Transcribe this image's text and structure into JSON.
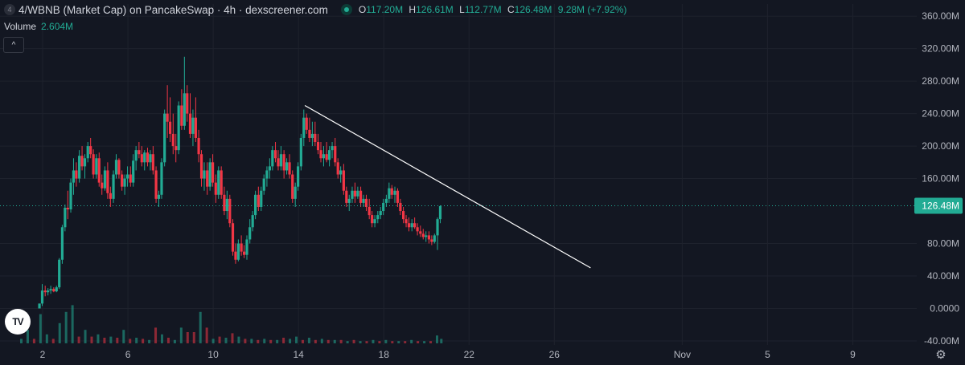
{
  "header": {
    "symbol_badge": "4",
    "title": "4/WBNB (Market Cap) on PancakeSwap · 4h · dexscreener.com",
    "status_color": "#22ab94",
    "ohlc": [
      {
        "key": "O",
        "value": "117.20M"
      },
      {
        "key": "H",
        "value": "126.61M"
      },
      {
        "key": "L",
        "value": "112.77M"
      },
      {
        "key": "C",
        "value": "126.48M"
      }
    ],
    "change": "9.28M (+7.92%)"
  },
  "volume": {
    "label": "Volume",
    "value": "2.604M"
  },
  "controls": {
    "collapse_icon": "chevron-up-icon",
    "collapse_glyph": "^",
    "settings_icon": "gear-icon",
    "settings_glyph": "⚙",
    "logo": "tradingview-logo",
    "logo_text": "TV"
  },
  "colors": {
    "background": "#131722",
    "up": "#22ab94",
    "down": "#f23645",
    "price_tag": "#22ab94",
    "trendline": "#ffffff",
    "grid": "#1e222d",
    "axis_text": "#b2b5be"
  },
  "chart_data": {
    "type": "candlestick",
    "y_axis_labels": [
      "360.00M",
      "320.00M",
      "280.00M",
      "240.00M",
      "200.00M",
      "160.00M",
      "126.48M",
      "80.00M",
      "40.00M",
      "0.0000",
      "-40.00M"
    ],
    "y_ticks": [
      360,
      320,
      280,
      240,
      200,
      160,
      80,
      40,
      0,
      -40
    ],
    "ylim": [
      -45,
      375
    ],
    "y_unit": "M",
    "x_axis_labels": [
      "2",
      "6",
      "10",
      "14",
      "18",
      "22",
      "26",
      "Nov",
      "5",
      "9"
    ],
    "x_ticks": [
      2,
      6,
      10,
      14,
      18,
      22,
      26,
      32,
      36,
      40
    ],
    "xlim": [
      0,
      43
    ],
    "last_price": 126.48,
    "last_price_label": "126.48M",
    "trendline": {
      "x1": 14.3,
      "y1": 250,
      "x2": 27.7,
      "y2": 50
    },
    "candles": [
      [
        1.85,
        0,
        6,
        0,
        6
      ],
      [
        1.98,
        6,
        30,
        3,
        22
      ],
      [
        2.12,
        22,
        28,
        15,
        20
      ],
      [
        2.25,
        20,
        25,
        16,
        22
      ],
      [
        2.38,
        22,
        28,
        18,
        24
      ],
      [
        2.52,
        24,
        26,
        20,
        21
      ],
      [
        2.65,
        21,
        28,
        20,
        26
      ],
      [
        2.78,
        26,
        62,
        24,
        60
      ],
      [
        2.92,
        60,
        103,
        55,
        100
      ],
      [
        3.05,
        100,
        128,
        95,
        124
      ],
      [
        3.18,
        124,
        145,
        110,
        122
      ],
      [
        3.32,
        122,
        160,
        118,
        155
      ],
      [
        3.45,
        155,
        185,
        140,
        170
      ],
      [
        3.58,
        170,
        180,
        150,
        160
      ],
      [
        3.72,
        160,
        195,
        155,
        188
      ],
      [
        3.85,
        188,
        200,
        170,
        175
      ],
      [
        3.98,
        175,
        190,
        160,
        185
      ],
      [
        4.12,
        185,
        205,
        180,
        200
      ],
      [
        4.25,
        200,
        210,
        185,
        190
      ],
      [
        4.38,
        190,
        196,
        160,
        165
      ],
      [
        4.52,
        165,
        190,
        160,
        185
      ],
      [
        4.65,
        185,
        192,
        150,
        155
      ],
      [
        4.78,
        155,
        165,
        140,
        148
      ],
      [
        4.92,
        148,
        175,
        145,
        170
      ],
      [
        5.05,
        170,
        180,
        135,
        142
      ],
      [
        5.18,
        142,
        150,
        125,
        135
      ],
      [
        5.32,
        135,
        170,
        130,
        165
      ],
      [
        5.45,
        165,
        190,
        160,
        183
      ],
      [
        5.58,
        183,
        185,
        160,
        165
      ],
      [
        5.72,
        165,
        170,
        145,
        150
      ],
      [
        5.85,
        150,
        165,
        140,
        160
      ],
      [
        5.98,
        160,
        175,
        150,
        165
      ],
      [
        6.12,
        165,
        175,
        150,
        155
      ],
      [
        6.25,
        155,
        190,
        150,
        182
      ],
      [
        6.38,
        182,
        200,
        170,
        195
      ],
      [
        6.52,
        195,
        205,
        185,
        190
      ],
      [
        6.65,
        190,
        200,
        175,
        180
      ],
      [
        6.78,
        180,
        195,
        170,
        192
      ],
      [
        6.92,
        192,
        198,
        175,
        180
      ],
      [
        7.05,
        180,
        195,
        170,
        190
      ],
      [
        7.18,
        190,
        200,
        165,
        170
      ],
      [
        7.32,
        170,
        175,
        130,
        135
      ],
      [
        7.45,
        135,
        145,
        125,
        140
      ],
      [
        7.58,
        140,
        185,
        135,
        180
      ],
      [
        7.72,
        180,
        245,
        175,
        240
      ],
      [
        7.85,
        240,
        275,
        210,
        230
      ],
      [
        7.98,
        230,
        260,
        205,
        215
      ],
      [
        8.12,
        215,
        240,
        190,
        200
      ],
      [
        8.25,
        200,
        215,
        180,
        195
      ],
      [
        8.38,
        195,
        255,
        190,
        250
      ],
      [
        8.52,
        250,
        270,
        220,
        225
      ],
      [
        8.65,
        225,
        310,
        220,
        265
      ],
      [
        8.78,
        265,
        275,
        230,
        240
      ],
      [
        8.92,
        240,
        265,
        210,
        215
      ],
      [
        9.05,
        215,
        245,
        200,
        235
      ],
      [
        9.18,
        235,
        260,
        205,
        210
      ],
      [
        9.32,
        210,
        220,
        180,
        190
      ],
      [
        9.45,
        190,
        195,
        150,
        160
      ],
      [
        9.58,
        160,
        180,
        145,
        170
      ],
      [
        9.72,
        170,
        180,
        140,
        150
      ],
      [
        9.85,
        150,
        185,
        145,
        180
      ],
      [
        9.98,
        180,
        190,
        150,
        155
      ],
      [
        10.12,
        155,
        165,
        130,
        140
      ],
      [
        10.25,
        140,
        175,
        135,
        170
      ],
      [
        10.38,
        170,
        175,
        135,
        140
      ],
      [
        10.52,
        140,
        150,
        115,
        120
      ],
      [
        10.65,
        120,
        145,
        110,
        135
      ],
      [
        10.78,
        135,
        140,
        100,
        105
      ],
      [
        10.92,
        105,
        110,
        65,
        70
      ],
      [
        11.05,
        70,
        80,
        55,
        60
      ],
      [
        11.18,
        60,
        85,
        58,
        80
      ],
      [
        11.32,
        80,
        90,
        65,
        70
      ],
      [
        11.45,
        70,
        78,
        62,
        66
      ],
      [
        11.58,
        66,
        90,
        60,
        85
      ],
      [
        11.72,
        85,
        110,
        80,
        100
      ],
      [
        11.85,
        100,
        120,
        95,
        115
      ],
      [
        11.98,
        115,
        145,
        110,
        140
      ],
      [
        12.12,
        140,
        150,
        120,
        125
      ],
      [
        12.25,
        125,
        150,
        120,
        145
      ],
      [
        12.38,
        145,
        165,
        140,
        160
      ],
      [
        12.52,
        160,
        175,
        150,
        170
      ],
      [
        12.65,
        170,
        185,
        160,
        175
      ],
      [
        12.78,
        175,
        200,
        170,
        195
      ],
      [
        12.92,
        195,
        205,
        180,
        185
      ],
      [
        13.05,
        185,
        195,
        170,
        175
      ],
      [
        13.18,
        175,
        200,
        170,
        190
      ],
      [
        13.32,
        190,
        195,
        160,
        170
      ],
      [
        13.45,
        170,
        185,
        165,
        180
      ],
      [
        13.58,
        180,
        190,
        160,
        165
      ],
      [
        13.72,
        165,
        170,
        130,
        135
      ],
      [
        13.85,
        135,
        155,
        125,
        150
      ],
      [
        13.98,
        150,
        180,
        145,
        175
      ],
      [
        14.12,
        175,
        215,
        170,
        210
      ],
      [
        14.25,
        210,
        245,
        200,
        235
      ],
      [
        14.38,
        235,
        240,
        215,
        220
      ],
      [
        14.52,
        220,
        235,
        205,
        210
      ],
      [
        14.65,
        210,
        230,
        200,
        215
      ],
      [
        14.78,
        215,
        230,
        200,
        205
      ],
      [
        14.92,
        205,
        215,
        190,
        195
      ],
      [
        15.05,
        195,
        205,
        180,
        185
      ],
      [
        15.18,
        185,
        200,
        175,
        190
      ],
      [
        15.32,
        190,
        205,
        180,
        183
      ],
      [
        15.45,
        183,
        200,
        175,
        195
      ],
      [
        15.58,
        195,
        205,
        185,
        200
      ],
      [
        15.72,
        200,
        210,
        175,
        180
      ],
      [
        15.85,
        180,
        185,
        160,
        165
      ],
      [
        15.98,
        165,
        175,
        155,
        170
      ],
      [
        16.12,
        170,
        178,
        140,
        145
      ],
      [
        16.25,
        145,
        150,
        125,
        130
      ],
      [
        16.38,
        130,
        140,
        120,
        135
      ],
      [
        16.52,
        135,
        150,
        130,
        145
      ],
      [
        16.65,
        145,
        155,
        130,
        138
      ],
      [
        16.78,
        138,
        150,
        135,
        145
      ],
      [
        16.92,
        145,
        150,
        125,
        130
      ],
      [
        17.05,
        130,
        140,
        125,
        135
      ],
      [
        17.18,
        135,
        140,
        120,
        125
      ],
      [
        17.32,
        125,
        135,
        110,
        115
      ],
      [
        17.45,
        115,
        120,
        100,
        105
      ],
      [
        17.58,
        105,
        115,
        100,
        110
      ],
      [
        17.72,
        110,
        120,
        105,
        115
      ],
      [
        17.85,
        115,
        125,
        110,
        120
      ],
      [
        17.98,
        120,
        135,
        115,
        130
      ],
      [
        18.12,
        130,
        140,
        125,
        135
      ],
      [
        18.25,
        135,
        155,
        130,
        148
      ],
      [
        18.38,
        148,
        152,
        135,
        140
      ],
      [
        18.52,
        140,
        150,
        130,
        145
      ],
      [
        18.65,
        145,
        148,
        125,
        130
      ],
      [
        18.78,
        130,
        135,
        115,
        120
      ],
      [
        18.92,
        120,
        125,
        105,
        110
      ],
      [
        19.05,
        110,
        115,
        100,
        105
      ],
      [
        19.18,
        105,
        112,
        95,
        100
      ],
      [
        19.32,
        100,
        110,
        95,
        105
      ],
      [
        19.45,
        105,
        112,
        98,
        100
      ],
      [
        19.58,
        100,
        105,
        90,
        95
      ],
      [
        19.72,
        95,
        102,
        88,
        92
      ],
      [
        19.85,
        92,
        98,
        85,
        88
      ],
      [
        19.98,
        88,
        95,
        82,
        90
      ],
      [
        20.12,
        90,
        95,
        80,
        85
      ],
      [
        20.25,
        85,
        90,
        78,
        82
      ],
      [
        20.38,
        82,
        92,
        80,
        90
      ],
      [
        20.52,
        90,
        112,
        72,
        110
      ],
      [
        20.65,
        110,
        127,
        105,
        126
      ]
    ],
    "volumes": [
      [
        1.0,
        4,
        1
      ],
      [
        1.3,
        12,
        1
      ],
      [
        1.6,
        4,
        0
      ],
      [
        1.9,
        26,
        1
      ],
      [
        2.2,
        8,
        1
      ],
      [
        2.5,
        4,
        0
      ],
      [
        2.8,
        18,
        1
      ],
      [
        3.1,
        28,
        1
      ],
      [
        3.4,
        34,
        1
      ],
      [
        3.7,
        6,
        0
      ],
      [
        4.0,
        12,
        1
      ],
      [
        4.3,
        6,
        0
      ],
      [
        4.6,
        8,
        1
      ],
      [
        4.9,
        5,
        0
      ],
      [
        5.2,
        6,
        1
      ],
      [
        5.5,
        5,
        0
      ],
      [
        5.8,
        12,
        1
      ],
      [
        6.1,
        4,
        0
      ],
      [
        6.4,
        5,
        1
      ],
      [
        6.7,
        4,
        0
      ],
      [
        7.0,
        3,
        1
      ],
      [
        7.3,
        14,
        0
      ],
      [
        7.6,
        8,
        1
      ],
      [
        7.9,
        5,
        0
      ],
      [
        8.2,
        3,
        1
      ],
      [
        8.5,
        14,
        1
      ],
      [
        8.8,
        10,
        0
      ],
      [
        9.1,
        10,
        0
      ],
      [
        9.4,
        28,
        1
      ],
      [
        9.7,
        14,
        0
      ],
      [
        10.0,
        4,
        1
      ],
      [
        10.3,
        6,
        0
      ],
      [
        10.6,
        5,
        1
      ],
      [
        10.9,
        9,
        0
      ],
      [
        11.2,
        6,
        1
      ],
      [
        11.5,
        4,
        0
      ],
      [
        11.8,
        4,
        1
      ],
      [
        12.1,
        3,
        0
      ],
      [
        12.4,
        4,
        1
      ],
      [
        12.7,
        3,
        0
      ],
      [
        13.0,
        3,
        1
      ],
      [
        13.3,
        5,
        0
      ],
      [
        13.6,
        4,
        1
      ],
      [
        13.9,
        6,
        1
      ],
      [
        14.2,
        3,
        0
      ],
      [
        14.5,
        5,
        1
      ],
      [
        14.8,
        3,
        0
      ],
      [
        15.1,
        4,
        1
      ],
      [
        15.4,
        3,
        0
      ],
      [
        15.7,
        3,
        1
      ],
      [
        16.0,
        3,
        0
      ],
      [
        16.3,
        2,
        1
      ],
      [
        16.6,
        3,
        0
      ],
      [
        16.9,
        2,
        1
      ],
      [
        17.2,
        2,
        0
      ],
      [
        17.5,
        3,
        1
      ],
      [
        17.8,
        2,
        0
      ],
      [
        18.1,
        3,
        1
      ],
      [
        18.4,
        2,
        0
      ],
      [
        18.7,
        2,
        1
      ],
      [
        19.0,
        2,
        0
      ],
      [
        19.3,
        3,
        1
      ],
      [
        19.6,
        2,
        0
      ],
      [
        19.9,
        2,
        1
      ],
      [
        20.2,
        2,
        0
      ],
      [
        20.5,
        7,
        1
      ],
      [
        20.7,
        4,
        1
      ]
    ]
  }
}
